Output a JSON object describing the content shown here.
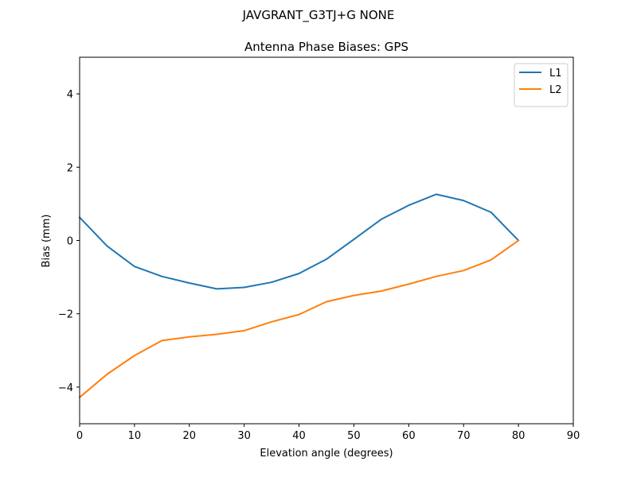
{
  "chart_data": {
    "type": "line",
    "suptitle": "JAVGRANT_G3TJ+G NONE",
    "title": "Antenna Phase Biases: GPS",
    "xlabel": "Elevation angle (degrees)",
    "ylabel": "Bias (mm)",
    "xlim": [
      0,
      90
    ],
    "ylim": [
      -5,
      5
    ],
    "xticks": [
      0,
      10,
      20,
      30,
      40,
      50,
      60,
      70,
      80,
      90
    ],
    "yticks": [
      -4,
      -2,
      0,
      2,
      4
    ],
    "xtick_labels": [
      "0",
      "10",
      "20",
      "30",
      "40",
      "50",
      "60",
      "70",
      "80",
      "90"
    ],
    "ytick_labels": [
      "−4",
      "−2",
      "0",
      "2",
      "4"
    ],
    "grid": false,
    "legend_position": "upper right",
    "x": [
      0,
      5,
      10,
      15,
      20,
      25,
      30,
      35,
      40,
      45,
      50,
      55,
      60,
      65,
      70,
      75,
      80
    ],
    "series": [
      {
        "name": "L1",
        "color": "#1f77b4",
        "values": [
          0.63,
          -0.15,
          -0.71,
          -0.98,
          -1.16,
          -1.32,
          -1.28,
          -1.14,
          -0.9,
          -0.51,
          0.03,
          0.58,
          0.96,
          1.26,
          1.09,
          0.77,
          0.0
        ]
      },
      {
        "name": "L2",
        "color": "#ff7f0e",
        "values": [
          -4.28,
          -3.65,
          -3.14,
          -2.73,
          -2.63,
          -2.56,
          -2.46,
          -2.22,
          -2.02,
          -1.67,
          -1.5,
          -1.38,
          -1.19,
          -0.98,
          -0.82,
          -0.53,
          0.0
        ]
      }
    ]
  }
}
